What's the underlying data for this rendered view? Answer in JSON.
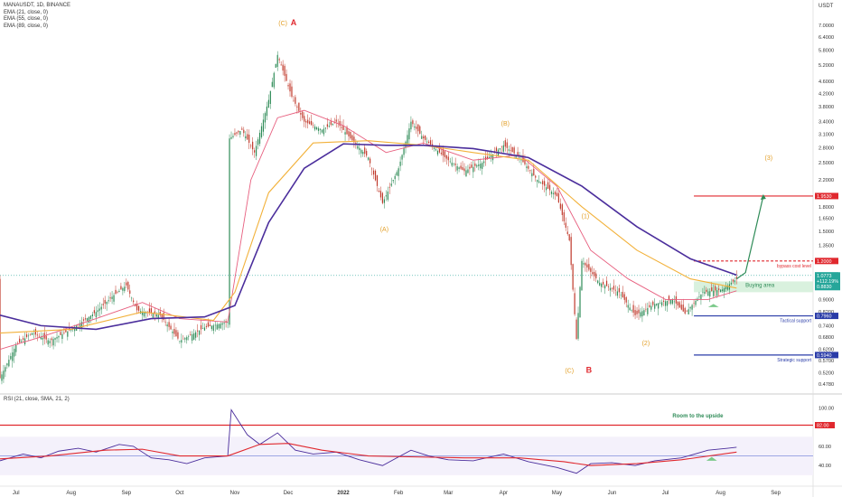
{
  "symbol": "MANAUSDT, 1D, BINANCE",
  "indicators": [
    "EMA (21, close, 0)",
    "EMA (55, close, 0)",
    "EMA (89, close, 0)"
  ],
  "rsi_label": "RSI (21, close, SMA, 21, 2)",
  "currency": "USDT",
  "colors": {
    "ema21": "#e75e7e",
    "ema55": "#f2b13a",
    "ema89": "#4b2e9c",
    "up": "#2e8b57",
    "down": "#c0392b",
    "price": "#26a69a",
    "resistance": "#e0282e",
    "support": "#2a3ca8",
    "wave": "#e3a02a",
    "wave_red": "#e0282e"
  },
  "chart_data": {
    "type": "candlestick",
    "scale": "log",
    "ylim": [
      0.45,
      8.0
    ],
    "yticks": [
      "7.0000",
      "6.4000",
      "5.8000",
      "5.2000",
      "4.6000",
      "4.2000",
      "3.8000",
      "3.4000",
      "3.1000",
      "2.8000",
      "2.5000",
      "2.2000",
      "1.8000",
      "1.6500",
      "1.5000",
      "1.3500",
      "1.2000",
      "1.0500",
      "0.9000",
      "0.8200",
      "0.7400",
      "0.6800",
      "0.6200",
      "0.5700",
      "0.5200",
      "0.4780"
    ],
    "xticks": [
      {
        "label": "Jul",
        "date": "2021-07-01"
      },
      {
        "label": "Aug",
        "date": "2021-08-01"
      },
      {
        "label": "Sep",
        "date": "2021-09-01"
      },
      {
        "label": "Oct",
        "date": "2021-10-01"
      },
      {
        "label": "Nov",
        "date": "2021-11-01"
      },
      {
        "label": "Dec",
        "date": "2021-12-01"
      },
      {
        "label": "2022",
        "date": "2022-01-01"
      },
      {
        "label": "Feb",
        "date": "2022-02-01"
      },
      {
        "label": "Mar",
        "date": "2022-03-01"
      },
      {
        "label": "Apr",
        "date": "2022-04-01"
      },
      {
        "label": "May",
        "date": "2022-05-01"
      },
      {
        "label": "Jun",
        "date": "2022-06-01"
      },
      {
        "label": "Jul",
        "date": "2022-07-01"
      },
      {
        "label": "Aug",
        "date": "2022-08-01"
      },
      {
        "label": "Sep",
        "date": "2022-09-01"
      }
    ],
    "price_path": [
      [
        "2021-06-22",
        0.5
      ],
      [
        "2021-07-01",
        0.64
      ],
      [
        "2021-07-10",
        0.7
      ],
      [
        "2021-07-20",
        0.66
      ],
      [
        "2021-08-01",
        0.72
      ],
      [
        "2021-08-15",
        0.82
      ],
      [
        "2021-08-25",
        0.93
      ],
      [
        "2021-09-01",
        1.0
      ],
      [
        "2021-09-07",
        0.83
      ],
      [
        "2021-09-20",
        0.8
      ],
      [
        "2021-10-01",
        0.66
      ],
      [
        "2021-10-15",
        0.73
      ],
      [
        "2021-10-28",
        0.76
      ],
      [
        "2021-10-29",
        3.0
      ],
      [
        "2021-11-05",
        3.2
      ],
      [
        "2021-11-12",
        2.7
      ],
      [
        "2021-11-20",
        4.0
      ],
      [
        "2021-11-25",
        5.6
      ],
      [
        "2021-12-03",
        4.1
      ],
      [
        "2021-12-10",
        3.4
      ],
      [
        "2021-12-20",
        3.2
      ],
      [
        "2021-12-28",
        3.4
      ],
      [
        "2022-01-05",
        3.0
      ],
      [
        "2022-01-15",
        2.6
      ],
      [
        "2022-01-23",
        1.85
      ],
      [
        "2022-02-01",
        2.4
      ],
      [
        "2022-02-08",
        3.4
      ],
      [
        "2022-02-15",
        3.0
      ],
      [
        "2022-03-01",
        2.55
      ],
      [
        "2022-03-10",
        2.35
      ],
      [
        "2022-03-20",
        2.5
      ],
      [
        "2022-04-01",
        2.85
      ],
      [
        "2022-04-10",
        2.6
      ],
      [
        "2022-04-20",
        2.2
      ],
      [
        "2022-05-01",
        1.95
      ],
      [
        "2022-05-08",
        1.4
      ],
      [
        "2022-05-12",
        0.67
      ],
      [
        "2022-05-15",
        1.2
      ],
      [
        "2022-05-25",
        1.02
      ],
      [
        "2022-06-05",
        0.95
      ],
      [
        "2022-06-14",
        0.8
      ],
      [
        "2022-06-25",
        0.87
      ],
      [
        "2022-07-05",
        0.9
      ],
      [
        "2022-07-12",
        0.81
      ],
      [
        "2022-07-22",
        0.95
      ],
      [
        "2022-08-02",
        0.97
      ],
      [
        "2022-08-10",
        1.05
      ]
    ],
    "ema21_path": [
      [
        "2021-06-22",
        0.62
      ],
      [
        "2021-07-15",
        0.68
      ],
      [
        "2021-08-15",
        0.78
      ],
      [
        "2021-09-10",
        0.88
      ],
      [
        "2021-10-01",
        0.78
      ],
      [
        "2021-10-28",
        0.76
      ],
      [
        "2021-11-10",
        2.2
      ],
      [
        "2021-11-25",
        3.5
      ],
      [
        "2021-12-10",
        3.7
      ],
      [
        "2022-01-01",
        3.3
      ],
      [
        "2022-01-25",
        2.7
      ],
      [
        "2022-02-15",
        2.9
      ],
      [
        "2022-03-15",
        2.55
      ],
      [
        "2022-04-10",
        2.65
      ],
      [
        "2022-05-01",
        2.1
      ],
      [
        "2022-05-20",
        1.3
      ],
      [
        "2022-06-10",
        1.05
      ],
      [
        "2022-07-01",
        0.9
      ],
      [
        "2022-07-25",
        0.9
      ],
      [
        "2022-08-10",
        0.96
      ]
    ],
    "ema55_path": [
      [
        "2021-06-22",
        0.7
      ],
      [
        "2021-08-01",
        0.72
      ],
      [
        "2021-09-10",
        0.82
      ],
      [
        "2021-10-20",
        0.77
      ],
      [
        "2021-11-01",
        0.95
      ],
      [
        "2021-11-20",
        2.0
      ],
      [
        "2021-12-15",
        2.9
      ],
      [
        "2022-01-15",
        2.95
      ],
      [
        "2022-02-15",
        2.85
      ],
      [
        "2022-03-15",
        2.7
      ],
      [
        "2022-04-15",
        2.55
      ],
      [
        "2022-05-15",
        1.8
      ],
      [
        "2022-06-15",
        1.3
      ],
      [
        "2022-07-15",
        1.05
      ],
      [
        "2022-08-10",
        0.98
      ]
    ],
    "ema89_path": [
      [
        "2021-06-22",
        0.8
      ],
      [
        "2021-07-15",
        0.74
      ],
      [
        "2021-08-15",
        0.72
      ],
      [
        "2021-09-15",
        0.78
      ],
      [
        "2021-10-15",
        0.79
      ],
      [
        "2021-11-01",
        0.86
      ],
      [
        "2021-11-20",
        1.6
      ],
      [
        "2021-12-10",
        2.4
      ],
      [
        "2022-01-01",
        2.88
      ],
      [
        "2022-01-25",
        2.85
      ],
      [
        "2022-02-15",
        2.85
      ],
      [
        "2022-03-15",
        2.78
      ],
      [
        "2022-04-15",
        2.6
      ],
      [
        "2022-05-15",
        2.1
      ],
      [
        "2022-06-15",
        1.55
      ],
      [
        "2022-07-15",
        1.22
      ],
      [
        "2022-08-10",
        1.08
      ]
    ],
    "projection": [
      [
        "2022-08-10",
        1.05
      ],
      [
        "2022-08-15",
        1.1
      ],
      [
        "2022-08-25",
        1.95
      ]
    ],
    "levels": [
      {
        "value": 1.95,
        "label": "1.9530",
        "color": "#e0282e",
        "style": "solid",
        "from": "2022-07-17"
      },
      {
        "value": 1.2,
        "label": "1.2000",
        "color": "#e0282e",
        "style": "dashed",
        "from": "2022-07-17",
        "text": "bypass cost level"
      },
      {
        "value": 1.0773,
        "label": "1.0773",
        "color": "#26a69a",
        "style": "dotted",
        "from": "2021-06-22"
      },
      {
        "value": 0.796,
        "label": "0.7960",
        "color": "#2a3ca8",
        "style": "solid",
        "from": "2022-07-17",
        "text": "Tactical support"
      },
      {
        "value": 0.594,
        "label": "0.5940",
        "color": "#2a3ca8",
        "style": "solid",
        "from": "2022-07-17",
        "text": "Strategic support"
      }
    ],
    "price_badge": {
      "value": "1.0773",
      "change": "+112.19%",
      "low": "0.8830"
    },
    "buying_area": {
      "from": "2022-07-17",
      "to": "2022-09-22",
      "low": 0.95,
      "high": 1.03,
      "label": "Buying area"
    },
    "waves": [
      {
        "label": "(C)",
        "date": "2021-11-28",
        "value": 7.0,
        "color": "#e3a02a"
      },
      {
        "label": "A",
        "date": "2021-12-04",
        "value": 7.0,
        "color": "#e0282e"
      },
      {
        "label": "(A)",
        "date": "2022-01-24",
        "value": 1.5,
        "color": "#e3a02a"
      },
      {
        "label": "(B)",
        "date": "2022-04-02",
        "value": 3.3,
        "color": "#e3a02a"
      },
      {
        "label": "(1)",
        "date": "2022-05-17",
        "value": 1.65,
        "color": "#e3a02a"
      },
      {
        "label": "(2)",
        "date": "2022-06-20",
        "value": 0.64,
        "color": "#e3a02a"
      },
      {
        "label": "(C)",
        "date": "2022-05-08",
        "value": 0.52,
        "color": "#e3a02a"
      },
      {
        "label": "B",
        "date": "2022-05-19",
        "value": 0.52,
        "color": "#e0282e"
      },
      {
        "label": "(3)",
        "date": "2022-08-28",
        "value": 2.55,
        "color": "#e3a02a"
      }
    ],
    "rsi": {
      "ylim": [
        28,
        105
      ],
      "yticks": [
        "100.00",
        "60.00",
        "40.00"
      ],
      "overbought": {
        "value": 82,
        "label": "82.00"
      },
      "midline": 50,
      "annotation": {
        "text": "Room to the upside",
        "date": "2022-07-05",
        "value": 90
      },
      "rsi_path": [
        [
          "2021-06-22",
          45
        ],
        [
          "2021-07-05",
          52
        ],
        [
          "2021-07-15",
          48
        ],
        [
          "2021-07-25",
          55
        ],
        [
          "2021-08-05",
          58
        ],
        [
          "2021-08-15",
          54
        ],
        [
          "2021-08-28",
          62
        ],
        [
          "2021-09-05",
          60
        ],
        [
          "2021-09-15",
          48
        ],
        [
          "2021-09-25",
          46
        ],
        [
          "2021-10-05",
          42
        ],
        [
          "2021-10-15",
          48
        ],
        [
          "2021-10-28",
          50
        ],
        [
          "2021-10-30",
          98
        ],
        [
          "2021-11-08",
          72
        ],
        [
          "2021-11-15",
          62
        ],
        [
          "2021-11-25",
          74
        ],
        [
          "2021-12-05",
          56
        ],
        [
          "2021-12-15",
          52
        ],
        [
          "2021-12-28",
          54
        ],
        [
          "2022-01-10",
          46
        ],
        [
          "2022-01-23",
          40
        ],
        [
          "2022-02-08",
          56
        ],
        [
          "2022-02-18",
          50
        ],
        [
          "2022-03-01",
          46
        ],
        [
          "2022-03-15",
          45
        ],
        [
          "2022-04-01",
          52
        ],
        [
          "2022-04-15",
          44
        ],
        [
          "2022-05-01",
          38
        ],
        [
          "2022-05-12",
          32
        ],
        [
          "2022-05-20",
          42
        ],
        [
          "2022-06-01",
          43
        ],
        [
          "2022-06-14",
          40
        ],
        [
          "2022-06-25",
          45
        ],
        [
          "2022-07-10",
          48
        ],
        [
          "2022-07-25",
          56
        ],
        [
          "2022-08-05",
          58
        ],
        [
          "2022-08-10",
          59
        ]
      ],
      "sma_path": [
        [
          "2021-06-22",
          47
        ],
        [
          "2021-07-20",
          50
        ],
        [
          "2021-08-20",
          56
        ],
        [
          "2021-09-10",
          57
        ],
        [
          "2021-10-01",
          50
        ],
        [
          "2021-10-28",
          50
        ],
        [
          "2021-11-15",
          62
        ],
        [
          "2021-12-01",
          63
        ],
        [
          "2021-12-20",
          56
        ],
        [
          "2022-01-15",
          50
        ],
        [
          "2022-02-10",
          49
        ],
        [
          "2022-03-10",
          48
        ],
        [
          "2022-04-10",
          48
        ],
        [
          "2022-05-05",
          44
        ],
        [
          "2022-05-20",
          40
        ],
        [
          "2022-06-15",
          42
        ],
        [
          "2022-07-10",
          46
        ],
        [
          "2022-08-10",
          54
        ]
      ]
    }
  }
}
